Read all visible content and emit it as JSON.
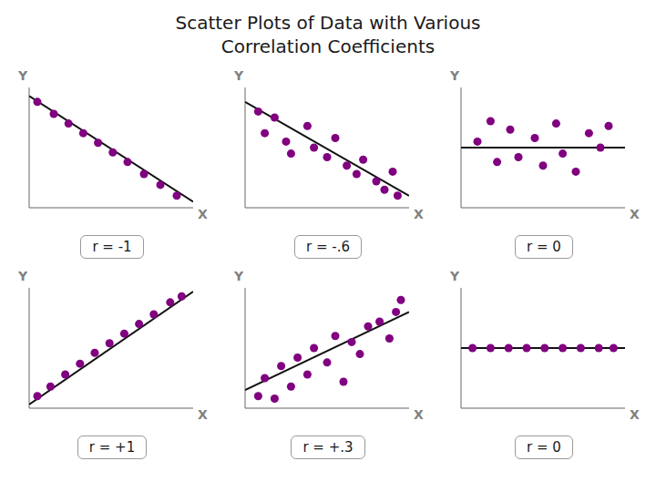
{
  "title": "Scatter Plots of Data with Various\nCorrelation Coefficients",
  "chart_data": [
    {
      "type": "scatter",
      "title": "r = -1",
      "x_label": "X",
      "y_label": "Y",
      "xlim": [
        0,
        1
      ],
      "ylim": [
        0,
        1
      ],
      "tick_labels": false,
      "grid": false,
      "color": "#800080",
      "x": [
        0.05,
        0.15,
        0.24,
        0.33,
        0.42,
        0.51,
        0.6,
        0.7,
        0.8,
        0.9
      ],
      "values": [
        0.88,
        0.78,
        0.7,
        0.62,
        0.54,
        0.46,
        0.38,
        0.28,
        0.19,
        0.1
      ],
      "trend_line": {
        "x": [
          0.0,
          1.0
        ],
        "values": [
          0.93,
          0.05
        ],
        "color": "#111111"
      }
    },
    {
      "type": "scatter",
      "title": "r = -.6",
      "x_label": "X",
      "y_label": "Y",
      "xlim": [
        0,
        1
      ],
      "ylim": [
        0,
        1
      ],
      "tick_labels": false,
      "grid": false,
      "color": "#800080",
      "x": [
        0.08,
        0.12,
        0.18,
        0.25,
        0.28,
        0.38,
        0.42,
        0.5,
        0.55,
        0.62,
        0.68,
        0.72,
        0.8,
        0.85,
        0.9,
        0.93
      ],
      "values": [
        0.8,
        0.62,
        0.75,
        0.55,
        0.45,
        0.68,
        0.5,
        0.42,
        0.58,
        0.35,
        0.28,
        0.4,
        0.22,
        0.15,
        0.3,
        0.1
      ],
      "trend_line": {
        "x": [
          0.0,
          1.0
        ],
        "values": [
          0.88,
          0.1
        ],
        "color": "#111111"
      }
    },
    {
      "type": "scatter",
      "title": "r = 0",
      "x_label": "X",
      "y_label": "Y",
      "xlim": [
        0,
        1
      ],
      "ylim": [
        0,
        1
      ],
      "tick_labels": false,
      "grid": false,
      "color": "#800080",
      "x": [
        0.1,
        0.18,
        0.22,
        0.3,
        0.35,
        0.45,
        0.5,
        0.58,
        0.62,
        0.7,
        0.78,
        0.85,
        0.9
      ],
      "values": [
        0.55,
        0.72,
        0.38,
        0.65,
        0.42,
        0.58,
        0.35,
        0.7,
        0.45,
        0.3,
        0.62,
        0.5,
        0.68
      ],
      "trend_line": {
        "x": [
          0.0,
          1.0
        ],
        "values": [
          0.5,
          0.5
        ],
        "color": "#111111"
      }
    },
    {
      "type": "scatter",
      "title": "r = +1",
      "x_label": "X",
      "y_label": "Y",
      "xlim": [
        0,
        1
      ],
      "ylim": [
        0,
        1
      ],
      "tick_labels": false,
      "grid": false,
      "color": "#800080",
      "x": [
        0.05,
        0.13,
        0.22,
        0.31,
        0.4,
        0.49,
        0.58,
        0.67,
        0.76,
        0.86,
        0.93
      ],
      "values": [
        0.1,
        0.18,
        0.28,
        0.37,
        0.46,
        0.54,
        0.62,
        0.7,
        0.78,
        0.88,
        0.93
      ],
      "trend_line": {
        "x": [
          0.0,
          1.0
        ],
        "values": [
          0.03,
          0.97
        ],
        "color": "#111111"
      }
    },
    {
      "type": "scatter",
      "title": "r = +.3",
      "x_label": "X",
      "y_label": "Y",
      "xlim": [
        0,
        1
      ],
      "ylim": [
        0,
        1
      ],
      "tick_labels": false,
      "grid": false,
      "color": "#800080",
      "x": [
        0.08,
        0.12,
        0.18,
        0.22,
        0.28,
        0.32,
        0.38,
        0.42,
        0.5,
        0.55,
        0.6,
        0.65,
        0.7,
        0.75,
        0.82,
        0.88,
        0.92,
        0.95
      ],
      "values": [
        0.1,
        0.25,
        0.08,
        0.35,
        0.18,
        0.42,
        0.28,
        0.5,
        0.38,
        0.6,
        0.22,
        0.55,
        0.45,
        0.68,
        0.72,
        0.58,
        0.8,
        0.9
      ],
      "trend_line": {
        "x": [
          0.0,
          1.0
        ],
        "values": [
          0.15,
          0.8
        ],
        "color": "#111111"
      }
    },
    {
      "type": "scatter",
      "title": "r = 0",
      "x_label": "X",
      "y_label": "Y",
      "xlim": [
        0,
        1
      ],
      "ylim": [
        0,
        1
      ],
      "tick_labels": false,
      "grid": false,
      "color": "#800080",
      "x": [
        0.07,
        0.18,
        0.29,
        0.4,
        0.51,
        0.62,
        0.73,
        0.84,
        0.93
      ],
      "values": [
        0.5,
        0.5,
        0.5,
        0.5,
        0.5,
        0.5,
        0.5,
        0.5,
        0.5
      ],
      "trend_line": {
        "x": [
          0.0,
          1.0
        ],
        "values": [
          0.5,
          0.5
        ],
        "color": "#111111"
      }
    }
  ]
}
